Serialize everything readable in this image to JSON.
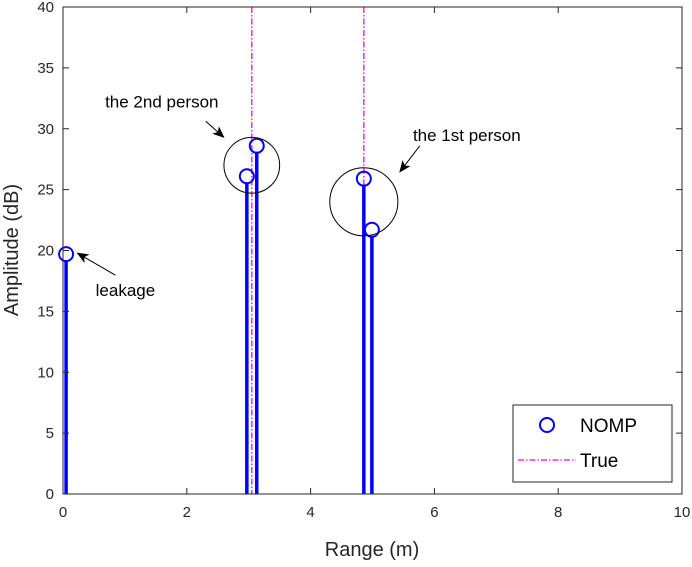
{
  "chart_data": {
    "type": "stem",
    "xlabel": "Range (m)",
    "ylabel": "Amplitude (dB)",
    "xlim": [
      0,
      10
    ],
    "ylim": [
      0,
      40
    ],
    "xticks": [
      0,
      2,
      4,
      6,
      8,
      10
    ],
    "yticks": [
      0,
      5,
      10,
      15,
      20,
      25,
      30,
      35,
      40
    ],
    "xtick_labels": [
      "0",
      "2",
      "4",
      "6",
      "8",
      "10"
    ],
    "ytick_labels": [
      "0",
      "5",
      "10",
      "15",
      "20",
      "25",
      "30",
      "35",
      "40"
    ],
    "grid": false,
    "legend_position": "bottom-right",
    "series": [
      {
        "name": "NOMP",
        "style": "stem",
        "marker": "circle",
        "color": "#0000ff",
        "points": [
          {
            "x": 0.05,
            "y": 19.7
          },
          {
            "x": 2.97,
            "y": 26.1
          },
          {
            "x": 3.13,
            "y": 28.6
          },
          {
            "x": 4.86,
            "y": 25.9
          },
          {
            "x": 4.99,
            "y": 21.7
          }
        ]
      },
      {
        "name": "True",
        "style": "vertical-dashdot",
        "color": "#ff00ff",
        "x": [
          3.05,
          4.86
        ]
      }
    ],
    "annotations": [
      {
        "text": "the 2nd person",
        "circle_center": [
          3.05,
          27.0
        ],
        "circle_radius_x": 0.45
      },
      {
        "text": "the 1st person",
        "circle_center": [
          4.86,
          24.0
        ],
        "circle_radius_x": 0.55
      },
      {
        "text": "leakage",
        "arrow_target": [
          0.12,
          19.7
        ]
      }
    ],
    "legend": {
      "nomp": "NOMP",
      "true": "True"
    }
  }
}
